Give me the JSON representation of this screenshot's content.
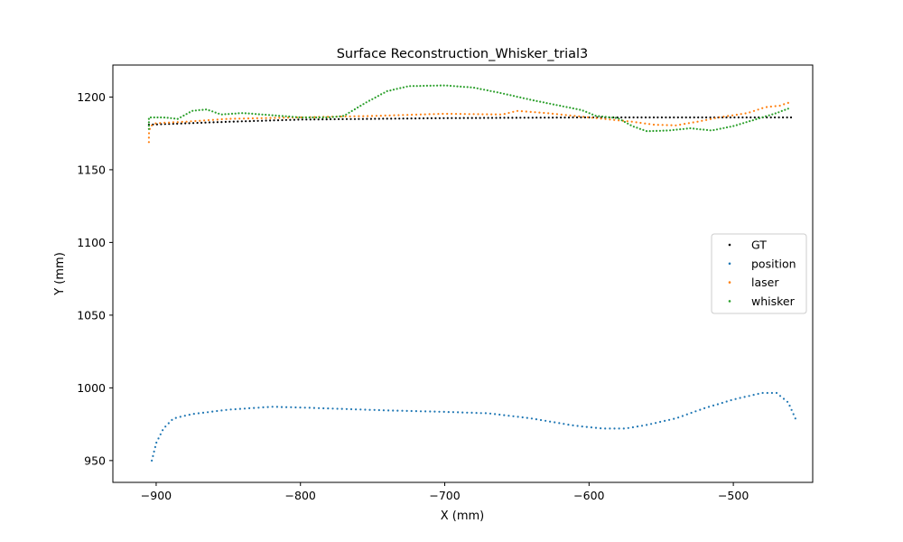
{
  "chart_data": {
    "type": "scatter",
    "title": "Surface Reconstruction_Whisker_trial3",
    "xlabel": "X (mm)",
    "ylabel": "Y (mm)",
    "xlim": [
      -930,
      -445
    ],
    "ylim": [
      935,
      1222
    ],
    "xticks": [
      -900,
      -800,
      -700,
      -600,
      -500
    ],
    "yticks": [
      950,
      1000,
      1050,
      1100,
      1150,
      1200
    ],
    "grid": false,
    "legend_position": "center-right",
    "series": [
      {
        "name": "GT",
        "color": "#000000",
        "curve": [
          [
            -905,
            1181
          ],
          [
            -850,
            1183
          ],
          [
            -800,
            1184.5
          ],
          [
            -700,
            1185.5
          ],
          [
            -600,
            1186
          ],
          [
            -500,
            1186
          ],
          [
            -460,
            1186
          ]
        ],
        "n": 160
      },
      {
        "name": "position",
        "color": "#1f77b4",
        "curve": [
          [
            -903,
            950
          ],
          [
            -900,
            962
          ],
          [
            -895,
            972
          ],
          [
            -888,
            979
          ],
          [
            -875,
            982
          ],
          [
            -850,
            985
          ],
          [
            -820,
            987
          ],
          [
            -800,
            986.5
          ],
          [
            -770,
            985.5
          ],
          [
            -740,
            984.5
          ],
          [
            -700,
            983.5
          ],
          [
            -670,
            982.5
          ],
          [
            -640,
            979
          ],
          [
            -610,
            974
          ],
          [
            -590,
            972
          ],
          [
            -575,
            972
          ],
          [
            -560,
            974.5
          ],
          [
            -540,
            979
          ],
          [
            -520,
            986
          ],
          [
            -500,
            992
          ],
          [
            -480,
            996.5
          ],
          [
            -470,
            996.5
          ],
          [
            -462,
            990
          ],
          [
            -457,
            979
          ]
        ],
        "n": 150
      },
      {
        "name": "laser",
        "color": "#ff7f0e",
        "curve": [
          [
            -905,
            1169
          ],
          [
            -905,
            1175
          ],
          [
            -904,
            1180
          ],
          [
            -900,
            1182
          ],
          [
            -880,
            1183
          ],
          [
            -850,
            1185
          ],
          [
            -800,
            1186
          ],
          [
            -750,
            1187
          ],
          [
            -700,
            1188.5
          ],
          [
            -660,
            1188
          ],
          [
            -650,
            1190.5
          ],
          [
            -630,
            1189
          ],
          [
            -600,
            1186
          ],
          [
            -570,
            1183
          ],
          [
            -555,
            1181
          ],
          [
            -540,
            1180.5
          ],
          [
            -525,
            1183
          ],
          [
            -510,
            1186
          ],
          [
            -490,
            1189
          ],
          [
            -478,
            1193
          ],
          [
            -468,
            1194
          ],
          [
            -462,
            1196
          ]
        ],
        "n": 150
      },
      {
        "name": "whisker",
        "color": "#2ca02c",
        "curve": [
          [
            -905,
            1178
          ],
          [
            -905,
            1183
          ],
          [
            -905,
            1186
          ],
          [
            -895,
            1186
          ],
          [
            -885,
            1185
          ],
          [
            -875,
            1190.5
          ],
          [
            -865,
            1191.5
          ],
          [
            -855,
            1188
          ],
          [
            -840,
            1189
          ],
          [
            -820,
            1187.5
          ],
          [
            -800,
            1186
          ],
          [
            -780,
            1186
          ],
          [
            -770,
            1187
          ],
          [
            -755,
            1196
          ],
          [
            -740,
            1204
          ],
          [
            -725,
            1207.5
          ],
          [
            -700,
            1208
          ],
          [
            -680,
            1206.5
          ],
          [
            -660,
            1202.5
          ],
          [
            -640,
            1198
          ],
          [
            -620,
            1194
          ],
          [
            -605,
            1191
          ],
          [
            -595,
            1187
          ],
          [
            -580,
            1185.5
          ],
          [
            -570,
            1180
          ],
          [
            -560,
            1176.5
          ],
          [
            -545,
            1177
          ],
          [
            -530,
            1178.5
          ],
          [
            -515,
            1177
          ],
          [
            -500,
            1180
          ],
          [
            -490,
            1183
          ],
          [
            -480,
            1186
          ],
          [
            -470,
            1189
          ],
          [
            -462,
            1192
          ]
        ],
        "n": 200
      }
    ]
  }
}
